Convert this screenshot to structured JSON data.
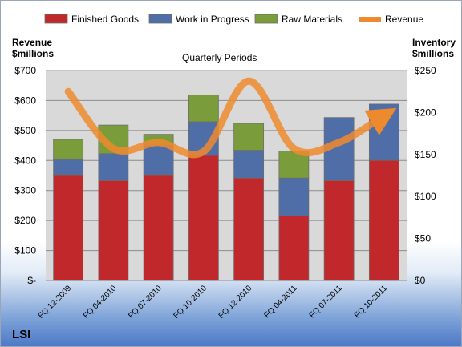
{
  "brand": "LSI",
  "chart_data": {
    "type": "bar",
    "stacked": true,
    "title": "Quarterly Periods",
    "left_axis_label": [
      "Revenue",
      "$millions"
    ],
    "right_axis_label": [
      "Inventory",
      "$millions"
    ],
    "categories": [
      "FQ 12-2009",
      "FQ 04-2010",
      "FQ 07-2010",
      "FQ 10-2010",
      "FQ 12-2010",
      "FQ 04-2011",
      "FQ 07-2011",
      "FQ 10-2011"
    ],
    "series": [
      {
        "name": "Finished Goods",
        "axis": "right",
        "color": "#c0282c",
        "values": [
          126,
          119,
          126,
          149,
          122,
          77,
          119,
          143
        ]
      },
      {
        "name": "Work in Progress",
        "axis": "right",
        "color": "#4f6ea8",
        "values": [
          18,
          32,
          35,
          40,
          33,
          45,
          75,
          67
        ]
      },
      {
        "name": "Raw Materials",
        "axis": "right",
        "color": "#7a9c3a",
        "values": [
          24,
          34,
          13,
          32,
          32,
          32,
          0,
          0
        ]
      },
      {
        "name": "Revenue",
        "type": "line",
        "axis": "left",
        "color": "#ee8a2e",
        "values": [
          630,
          440,
          460,
          430,
          665,
          440,
          460,
          550
        ]
      }
    ],
    "left_axis": {
      "min": 0,
      "max": 700,
      "ticks": [
        "$-",
        "$100",
        "$200",
        "$300",
        "$400",
        "$500",
        "$600",
        "$700"
      ]
    },
    "right_axis": {
      "min": 0,
      "max": 250,
      "ticks": [
        "$0",
        "$50",
        "$100",
        "$150",
        "$200",
        "$250"
      ]
    },
    "legend_position": "top",
    "plot_background": "#d9d9d9"
  }
}
